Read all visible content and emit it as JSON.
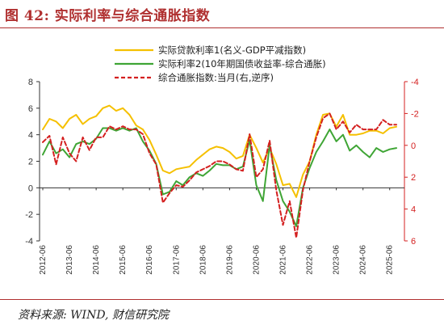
{
  "header": {
    "title": "图 42:  实际利率与综合通胀指数"
  },
  "source": {
    "text": "资料来源: WIND, 财信研究院"
  },
  "colors": {
    "real_loan": "#f5c000",
    "real_bond": "#3fa535",
    "inflation": "#d42020",
    "accent": "#b03030"
  },
  "chart_data": {
    "type": "line",
    "x": [
      "2012-06",
      "2012-09",
      "2012-12",
      "2013-03",
      "2013-06",
      "2013-09",
      "2013-12",
      "2014-03",
      "2014-06",
      "2014-09",
      "2014-12",
      "2015-03",
      "2015-06",
      "2015-09",
      "2015-12",
      "2016-03",
      "2016-06",
      "2016-09",
      "2016-12",
      "2017-03",
      "2017-06",
      "2017-09",
      "2017-12",
      "2018-03",
      "2018-06",
      "2018-09",
      "2018-12",
      "2019-03",
      "2019-06",
      "2019-09",
      "2019-12",
      "2020-03",
      "2020-06",
      "2020-09",
      "2020-12",
      "2021-03",
      "2021-06",
      "2021-09",
      "2021-12",
      "2022-03",
      "2022-06",
      "2022-09",
      "2022-12",
      "2023-03",
      "2023-06",
      "2023-09",
      "2023-12",
      "2024-03",
      "2024-06",
      "2024-09",
      "2024-12",
      "2025-03",
      "2025-06",
      "2025-09"
    ],
    "xticks": [
      "2012-06",
      "2013-06",
      "2014-06",
      "2015-06",
      "2016-06",
      "2017-06",
      "2018-06",
      "2019-06",
      "2020-06",
      "2021-06",
      "2022-06",
      "2023-06",
      "2024-06",
      "2025-06"
    ],
    "ylim_left": [
      -4,
      8
    ],
    "yticks_left": [
      "-4",
      "-2",
      "0",
      "2",
      "4",
      "6",
      "8"
    ],
    "ylim_right": [
      6,
      -4
    ],
    "yticks_right": [
      "6",
      "4",
      "2",
      "0",
      "-2",
      "-4"
    ],
    "right_axis_inverted": true,
    "legend_placement": "top-center",
    "grid": false,
    "series": [
      {
        "name": "实际贷款利率1(名义-GDP平减指数)",
        "axis": "left",
        "color": "#f5c000",
        "style": "solid",
        "values": [
          4.4,
          5.2,
          5.0,
          4.5,
          5.2,
          5.5,
          4.8,
          5.2,
          5.4,
          6.0,
          6.2,
          5.8,
          6.0,
          5.5,
          4.7,
          4.4,
          3.6,
          2.5,
          1.3,
          1.1,
          1.4,
          1.5,
          1.6,
          2.1,
          2.5,
          2.9,
          3.1,
          3.0,
          2.7,
          2.2,
          2.4,
          4.0,
          3.0,
          1.9,
          3.0,
          1.8,
          0.2,
          0.3,
          -0.7,
          1.0,
          2.0,
          4.0,
          5.5,
          5.6,
          4.6,
          5.5,
          4.0,
          4.0,
          4.1,
          4.3,
          4.3,
          4.1,
          4.5,
          4.6
        ]
      },
      {
        "name": "实际利率2(10年期国债收益率-综合通胀)",
        "axis": "left",
        "color": "#3fa535",
        "style": "solid",
        "values": [
          2.5,
          3.5,
          2.6,
          2.9,
          2.3,
          3.3,
          3.5,
          3.3,
          3.7,
          4.5,
          4.5,
          4.3,
          4.5,
          4.3,
          4.5,
          3.5,
          2.8,
          1.8,
          -0.5,
          -0.3,
          0.5,
          0.2,
          0.8,
          1.1,
          0.9,
          1.3,
          1.8,
          1.7,
          1.7,
          1.4,
          1.6,
          3.6,
          0.2,
          -1.0,
          3.2,
          0.6,
          -1.0,
          -1.8,
          -2.9,
          0.0,
          1.5,
          2.7,
          3.5,
          4.4,
          3.5,
          4.0,
          2.8,
          3.2,
          2.7,
          2.3,
          3.0,
          2.7,
          2.9,
          3.0
        ]
      },
      {
        "name": "综合通胀指数:当月(右,逆序)",
        "axis": "right",
        "color": "#d42020",
        "style": "dashed",
        "values": [
          -0.2,
          -0.6,
          1.2,
          -0.5,
          0.5,
          1.0,
          -0.5,
          0.3,
          -0.5,
          -0.5,
          -1.2,
          -1.0,
          -1.2,
          -1.0,
          -1.0,
          -0.7,
          0.5,
          1.2,
          3.6,
          3.0,
          2.5,
          2.6,
          2.2,
          1.7,
          1.5,
          1.3,
          1.0,
          1.0,
          1.2,
          1.5,
          1.6,
          -0.7,
          2.0,
          1.5,
          -0.3,
          2.8,
          5.0,
          3.5,
          5.8,
          2.8,
          1.0,
          -0.5,
          -1.7,
          -2.0,
          -1.0,
          -1.5,
          -0.8,
          -1.3,
          -1.0,
          -1.0,
          -1.0,
          -1.6,
          -1.3,
          -1.3
        ]
      }
    ]
  }
}
